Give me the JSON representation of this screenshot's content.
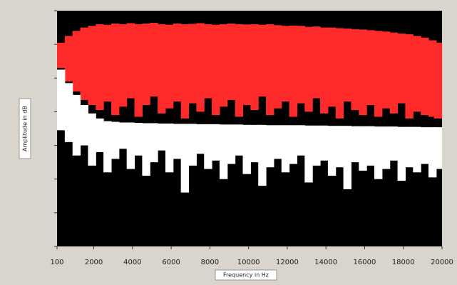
{
  "chart_data": {
    "type": "range-bar",
    "xlabel": "Frequency in Hz",
    "ylabel": "Amplitude in dB",
    "x": [
      100,
      500,
      900,
      1300,
      1700,
      2100,
      2500,
      2900,
      3300,
      3700,
      4100,
      4500,
      4900,
      5300,
      5700,
      6100,
      6500,
      6900,
      7300,
      7700,
      8100,
      8500,
      8900,
      9300,
      9700,
      10100,
      10500,
      10900,
      11300,
      11700,
      12100,
      12500,
      12900,
      13300,
      13700,
      14100,
      14500,
      14900,
      15300,
      15700,
      16100,
      16500,
      16900,
      17300,
      17700,
      18100,
      18500,
      18900,
      19300,
      19700
    ],
    "series": [
      {
        "color": "#ff2b2b",
        "values": [
          6.05,
          6.25,
          6.4,
          6.5,
          6.55,
          6.6,
          6.58,
          6.62,
          6.6,
          6.63,
          6.6,
          6.62,
          6.64,
          6.6,
          6.58,
          6.62,
          6.6,
          6.61,
          6.63,
          6.6,
          6.58,
          6.6,
          6.62,
          6.6,
          6.59,
          6.6,
          6.58,
          6.6,
          6.57,
          6.55,
          6.56,
          6.55,
          6.52,
          6.53,
          6.5,
          6.5,
          6.48,
          6.47,
          6.45,
          6.44,
          6.42,
          6.4,
          6.38,
          6.35,
          6.32,
          6.3,
          6.25,
          6.2,
          6.12,
          6.05
        ],
        "lower": [
          5.3,
          4.9,
          4.6,
          4.35,
          4.2,
          4.05,
          4.3,
          3.9,
          4.15,
          4.4,
          3.85,
          4.2,
          4.45,
          3.95,
          4.1,
          4.3,
          3.8,
          4.25,
          4.0,
          4.4,
          3.9,
          4.15,
          4.35,
          3.85,
          4.2,
          4.05,
          4.45,
          3.9,
          4.1,
          4.3,
          3.85,
          4.25,
          4.0,
          4.4,
          3.95,
          4.15,
          3.8,
          4.3,
          4.05,
          3.9,
          4.2,
          3.85,
          4.1,
          3.95,
          4.25,
          3.8,
          4.0,
          3.9,
          3.85,
          3.8
        ]
      },
      {
        "color": "#ffffff",
        "values": [
          5.25,
          4.85,
          4.5,
          4.2,
          3.95,
          3.8,
          3.72,
          3.7,
          3.68,
          3.68,
          3.67,
          3.66,
          3.66,
          3.65,
          3.65,
          3.64,
          3.64,
          3.64,
          3.63,
          3.63,
          3.63,
          3.62,
          3.62,
          3.62,
          3.61,
          3.61,
          3.61,
          3.6,
          3.6,
          3.6,
          3.6,
          3.6,
          3.59,
          3.59,
          3.59,
          3.58,
          3.58,
          3.58,
          3.57,
          3.57,
          3.57,
          3.56,
          3.56,
          3.56,
          3.55,
          3.55,
          3.55,
          3.54,
          3.54,
          3.54
        ],
        "lower": [
          3.45,
          3.1,
          2.7,
          3.0,
          2.4,
          2.8,
          2.2,
          2.6,
          2.9,
          2.3,
          2.7,
          2.1,
          2.5,
          2.85,
          2.2,
          2.6,
          1.6,
          2.4,
          2.75,
          2.3,
          2.55,
          2.0,
          2.45,
          2.7,
          2.15,
          2.5,
          1.8,
          2.35,
          2.6,
          2.2,
          2.45,
          2.7,
          1.9,
          2.4,
          2.55,
          2.1,
          2.35,
          1.7,
          2.5,
          2.25,
          2.4,
          2.0,
          2.3,
          2.55,
          1.95,
          2.35,
          2.2,
          2.45,
          2.05,
          2.3
        ]
      }
    ],
    "xlim": [
      100,
      20000
    ],
    "xticks": [
      100,
      2000,
      4000,
      6000,
      8000,
      10000,
      12000,
      14000,
      16000,
      18000,
      20000
    ],
    "ylim": [
      0,
      7
    ],
    "yticks": [
      0,
      1,
      2,
      3,
      4,
      5,
      6,
      7
    ],
    "background": "#000000"
  }
}
